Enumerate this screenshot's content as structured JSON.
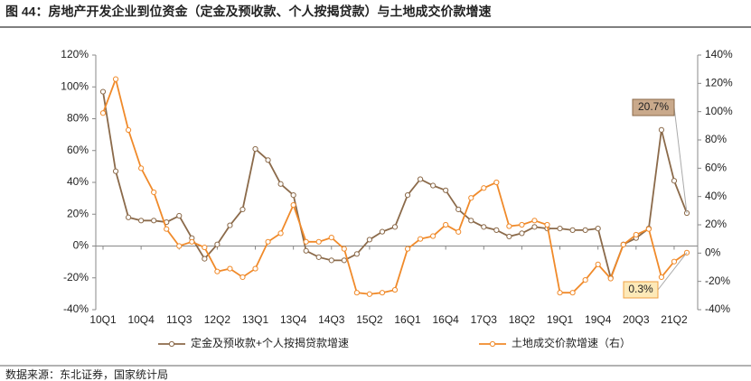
{
  "chart_data": {
    "type": "line",
    "title": "图 44：房地产开发企业到位资金（定金及预收款、个人按揭贷款）与土地成交价款增速",
    "source": "数据来源：东北证券，国家统计局",
    "categories": [
      "10Q1",
      null,
      null,
      "10Q4",
      null,
      null,
      "11Q3",
      null,
      null,
      "12Q2",
      null,
      null,
      "13Q1",
      null,
      null,
      "13Q4",
      null,
      null,
      "14Q3",
      null,
      null,
      "15Q2",
      null,
      null,
      "16Q1",
      null,
      null,
      "16Q4",
      null,
      null,
      "17Q3",
      null,
      null,
      "18Q2",
      null,
      null,
      "19Q1",
      null,
      null,
      "19Q4",
      null,
      null,
      "20Q3",
      null,
      null,
      "21Q2",
      null
    ],
    "series": [
      {
        "name": "定金及预收款+个人按揭贷款增速",
        "color": "#8b6a4a",
        "values": [
          97,
          47,
          18,
          16,
          16,
          15,
          19,
          5,
          -8,
          1,
          13,
          23,
          61,
          54,
          39,
          32,
          -3,
          -7,
          -9,
          -9,
          -5,
          4,
          9,
          12,
          32,
          42,
          38,
          35,
          23,
          16,
          12,
          10,
          6,
          8,
          12,
          11,
          11,
          10,
          10,
          11,
          -20,
          1,
          5,
          11,
          73,
          41,
          20.7
        ],
        "value_labels": [
          null,
          null,
          null,
          null,
          null,
          null,
          null,
          null,
          null,
          null,
          null,
          null,
          null,
          null,
          null,
          null,
          null,
          null,
          null,
          null,
          null,
          null,
          null,
          null,
          null,
          null,
          null,
          null,
          null,
          null,
          null,
          null,
          null,
          null,
          null,
          null,
          null,
          null,
          null,
          null,
          null,
          null,
          null,
          null,
          null,
          null,
          "20.7%"
        ]
      },
      {
        "name": "土地成交价款增速（右）",
        "color": "#f08a2a",
        "axis": "y2",
        "values": [
          99,
          123,
          87,
          60,
          43,
          17,
          5,
          8,
          4,
          -13,
          -11,
          -17,
          -11,
          8,
          14,
          34,
          8,
          8,
          11,
          3,
          -28,
          -29,
          -28,
          -26,
          3,
          10,
          12,
          20,
          15,
          39,
          46,
          50,
          19,
          20,
          23,
          20,
          -28,
          -28,
          -19,
          -8,
          -18,
          6,
          13,
          17,
          -17,
          -6,
          0.3
        ],
        "value_labels": [
          null,
          null,
          null,
          null,
          null,
          null,
          null,
          null,
          null,
          null,
          null,
          null,
          null,
          null,
          null,
          null,
          null,
          null,
          null,
          null,
          null,
          null,
          null,
          null,
          null,
          null,
          null,
          null,
          null,
          null,
          null,
          null,
          null,
          null,
          null,
          null,
          null,
          null,
          null,
          null,
          null,
          null,
          null,
          null,
          null,
          null,
          "0.3%"
        ]
      }
    ],
    "ylim": [
      -40,
      120
    ],
    "yticks": [
      {
        "value": -40,
        "label": "-40%"
      },
      {
        "value": -20,
        "label": "-20%"
      },
      {
        "value": 0,
        "label": "0%"
      },
      {
        "value": 20,
        "label": "20%"
      },
      {
        "value": 40,
        "label": "40%"
      },
      {
        "value": 60,
        "label": "60%"
      },
      {
        "value": 80,
        "label": "80%"
      },
      {
        "value": 100,
        "label": "100%"
      },
      {
        "value": 120,
        "label": "120%"
      }
    ],
    "y2lim": [
      -40,
      140
    ],
    "y2ticks": [
      {
        "value": -40,
        "label": "-40%"
      },
      {
        "value": -20,
        "label": "-20%"
      },
      {
        "value": 0,
        "label": "0%"
      },
      {
        "value": 20,
        "label": "20%"
      },
      {
        "value": 40,
        "label": "40%"
      },
      {
        "value": 60,
        "label": "60%"
      },
      {
        "value": 80,
        "label": "80%"
      },
      {
        "value": 100,
        "label": "100%"
      },
      {
        "value": 120,
        "label": "120%"
      },
      {
        "value": 140,
        "label": "140%"
      }
    ],
    "legend": "bottom"
  }
}
